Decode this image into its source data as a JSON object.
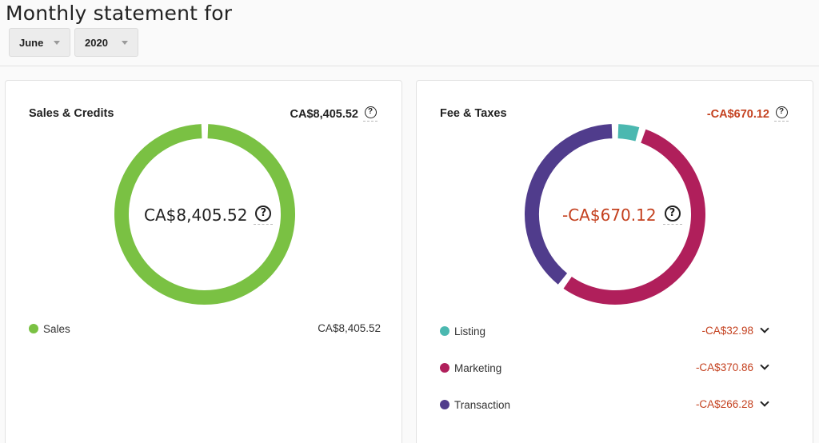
{
  "header": {
    "title": "Monthly statement for",
    "month": "June",
    "year": "2020"
  },
  "sales_card": {
    "title": "Sales & Credits",
    "total": "CA$8,405.52",
    "center": "CA$8,405.52",
    "items": [
      {
        "label": "Sales",
        "amount": "CA$8,405.52",
        "color": "#7ac143",
        "share": 1.0
      }
    ]
  },
  "fees_card": {
    "title": "Fee & Taxes",
    "total": "-CA$670.12",
    "center": "-CA$670.12",
    "items": [
      {
        "label": "Listing",
        "amount": "-CA$32.98",
        "color": "#4bb8b0",
        "share": 0.0492
      },
      {
        "label": "Marketing",
        "amount": "-CA$370.86",
        "color": "#b01f5b",
        "share": 0.5534
      },
      {
        "label": "Transaction",
        "amount": "-CA$266.28",
        "color": "#503c8c",
        "share": 0.3974
      }
    ]
  },
  "colors": {
    "negative": "#c4411f",
    "sales": "#7ac143"
  },
  "help_glyph": "?"
}
